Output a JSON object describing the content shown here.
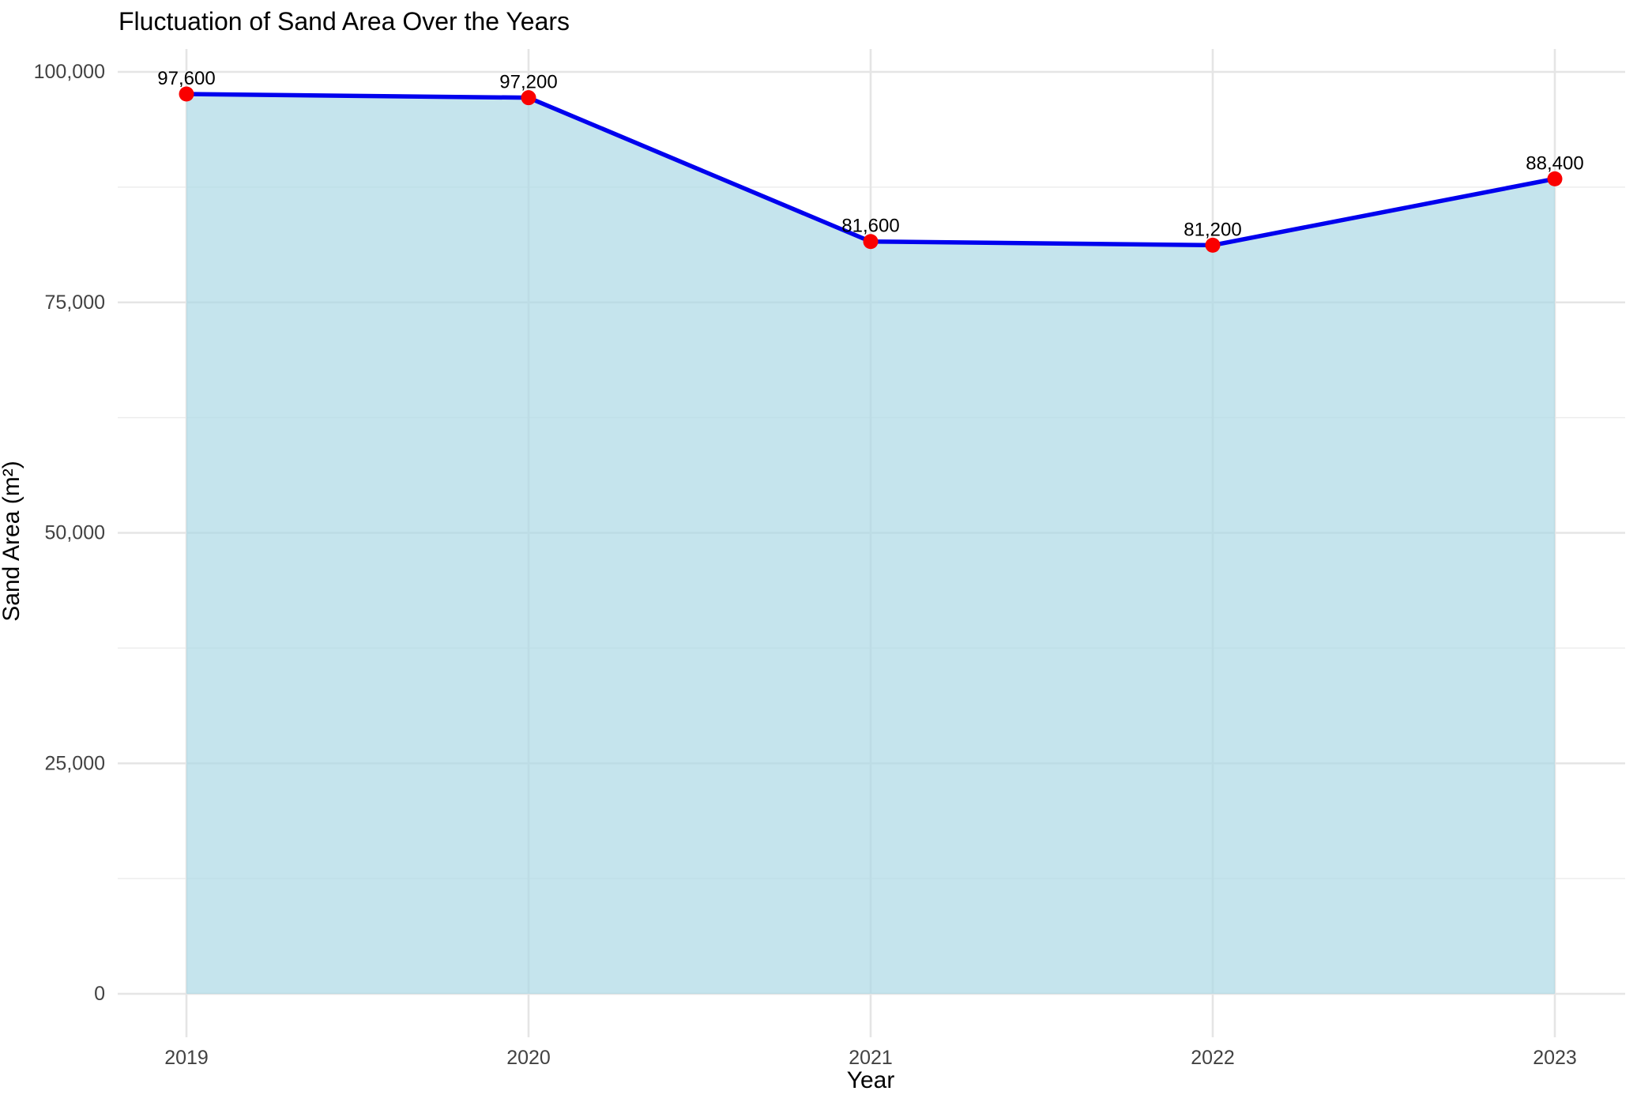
{
  "page": {
    "background": "#FFFFFF"
  },
  "chart_data": {
    "type": "area",
    "title": "Fluctuation of Sand Area Over the Years",
    "xlabel": "Year",
    "ylabel": "Sand Area (m²)",
    "categories": [
      "2019",
      "2020",
      "2021",
      "2022",
      "2023"
    ],
    "values": [
      97600,
      97200,
      81600,
      81200,
      88400
    ],
    "point_labels": [
      "97,600",
      "97,200",
      "81,600",
      "81,200",
      "88,400"
    ],
    "ylim": [
      0,
      100000
    ],
    "yticks": [
      0,
      25000,
      50000,
      75000,
      100000
    ],
    "ytick_labels": [
      "0",
      "25,000",
      "50,000",
      "75,000",
      "100,000"
    ],
    "grid": {
      "major_horizontal": true,
      "minor_horizontal": true,
      "major_vertical": true,
      "minor_vertical": false
    },
    "legend": "none",
    "styles": {
      "line_color": "#0000EE",
      "line_width": 5.5,
      "point_color": "#FA0000",
      "point_radius": 9.5,
      "area_fill": "#ADD8E6",
      "area_opacity": 0.7,
      "grid_major_color": "#E5E5E5",
      "grid_major_width": 2.6,
      "grid_minor_color": "#EDEDED",
      "grid_minor_width": 1.5,
      "tick_label_color": "#424242",
      "text_color": "#000000",
      "background": "#FFFFFF"
    }
  }
}
